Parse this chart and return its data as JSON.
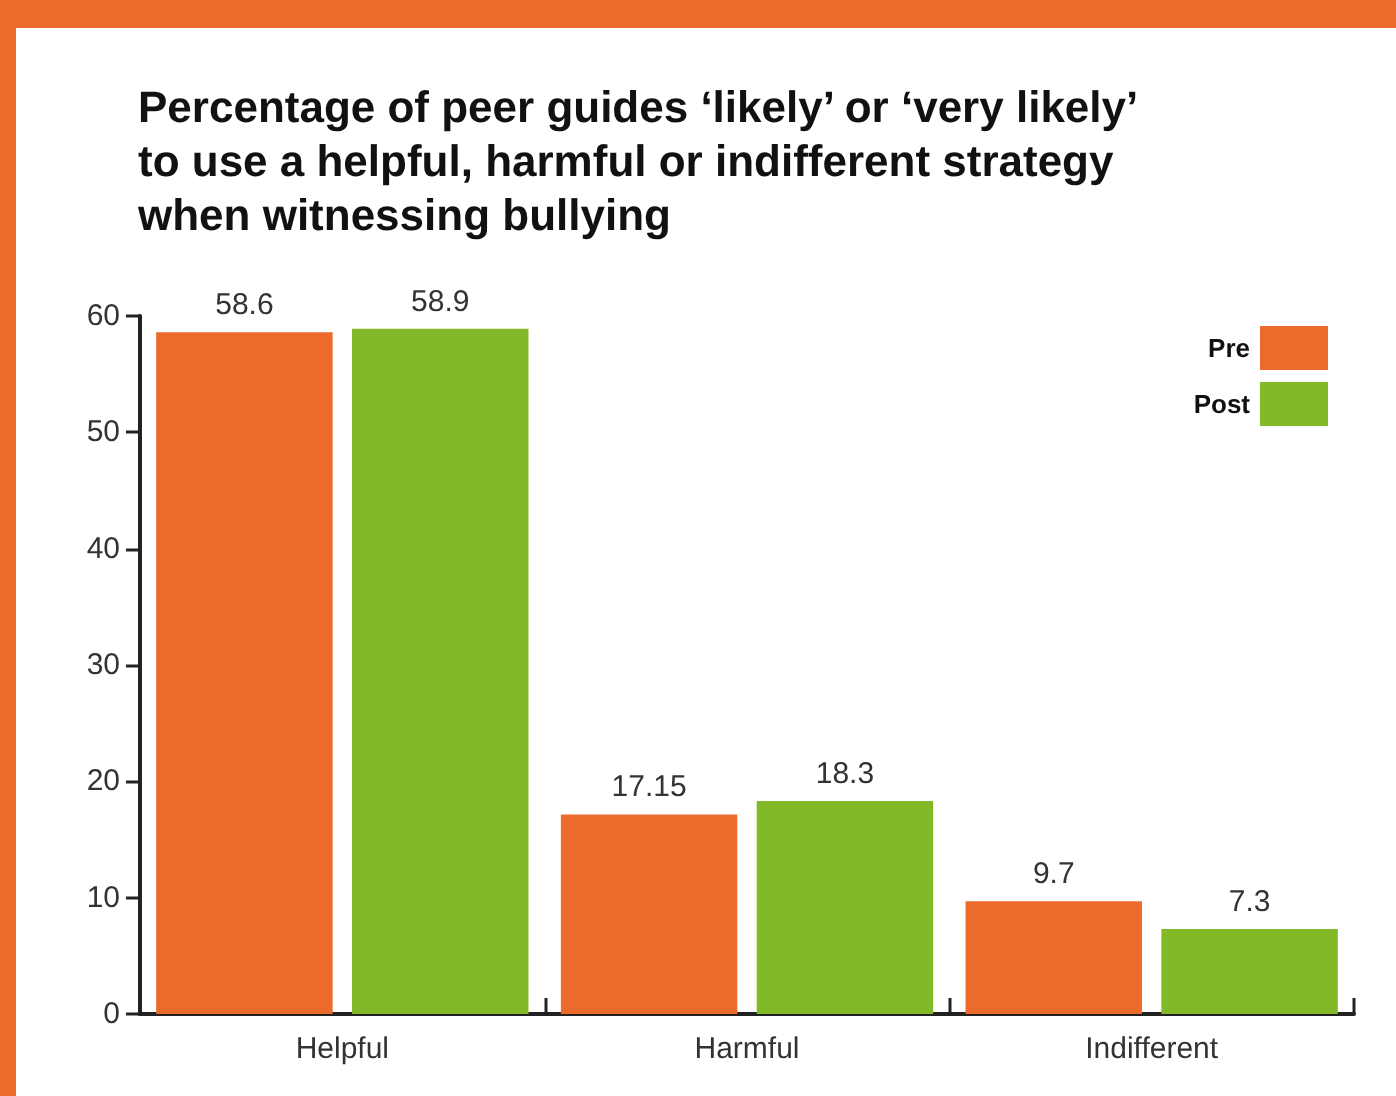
{
  "chart_data": {
    "type": "bar",
    "title": "Percentage of peer guides ‘likely’ or ‘very likely’ to use a helpful, harmful or indifferent strategy when witnessing bullying",
    "categories": [
      "Helpful",
      "Harmful",
      "Indifferent"
    ],
    "series": [
      {
        "name": "Pre",
        "color": "#ec6a2c",
        "values": [
          58.6,
          17.15,
          9.7
        ]
      },
      {
        "name": "Post",
        "color": "#82b928",
        "values": [
          58.9,
          18.3,
          7.3
        ]
      }
    ],
    "ylim": [
      0,
      60
    ],
    "yticks": [
      0,
      10,
      20,
      30,
      40,
      50,
      60
    ],
    "grid": false,
    "legend": "top right",
    "data_labels": true
  }
}
